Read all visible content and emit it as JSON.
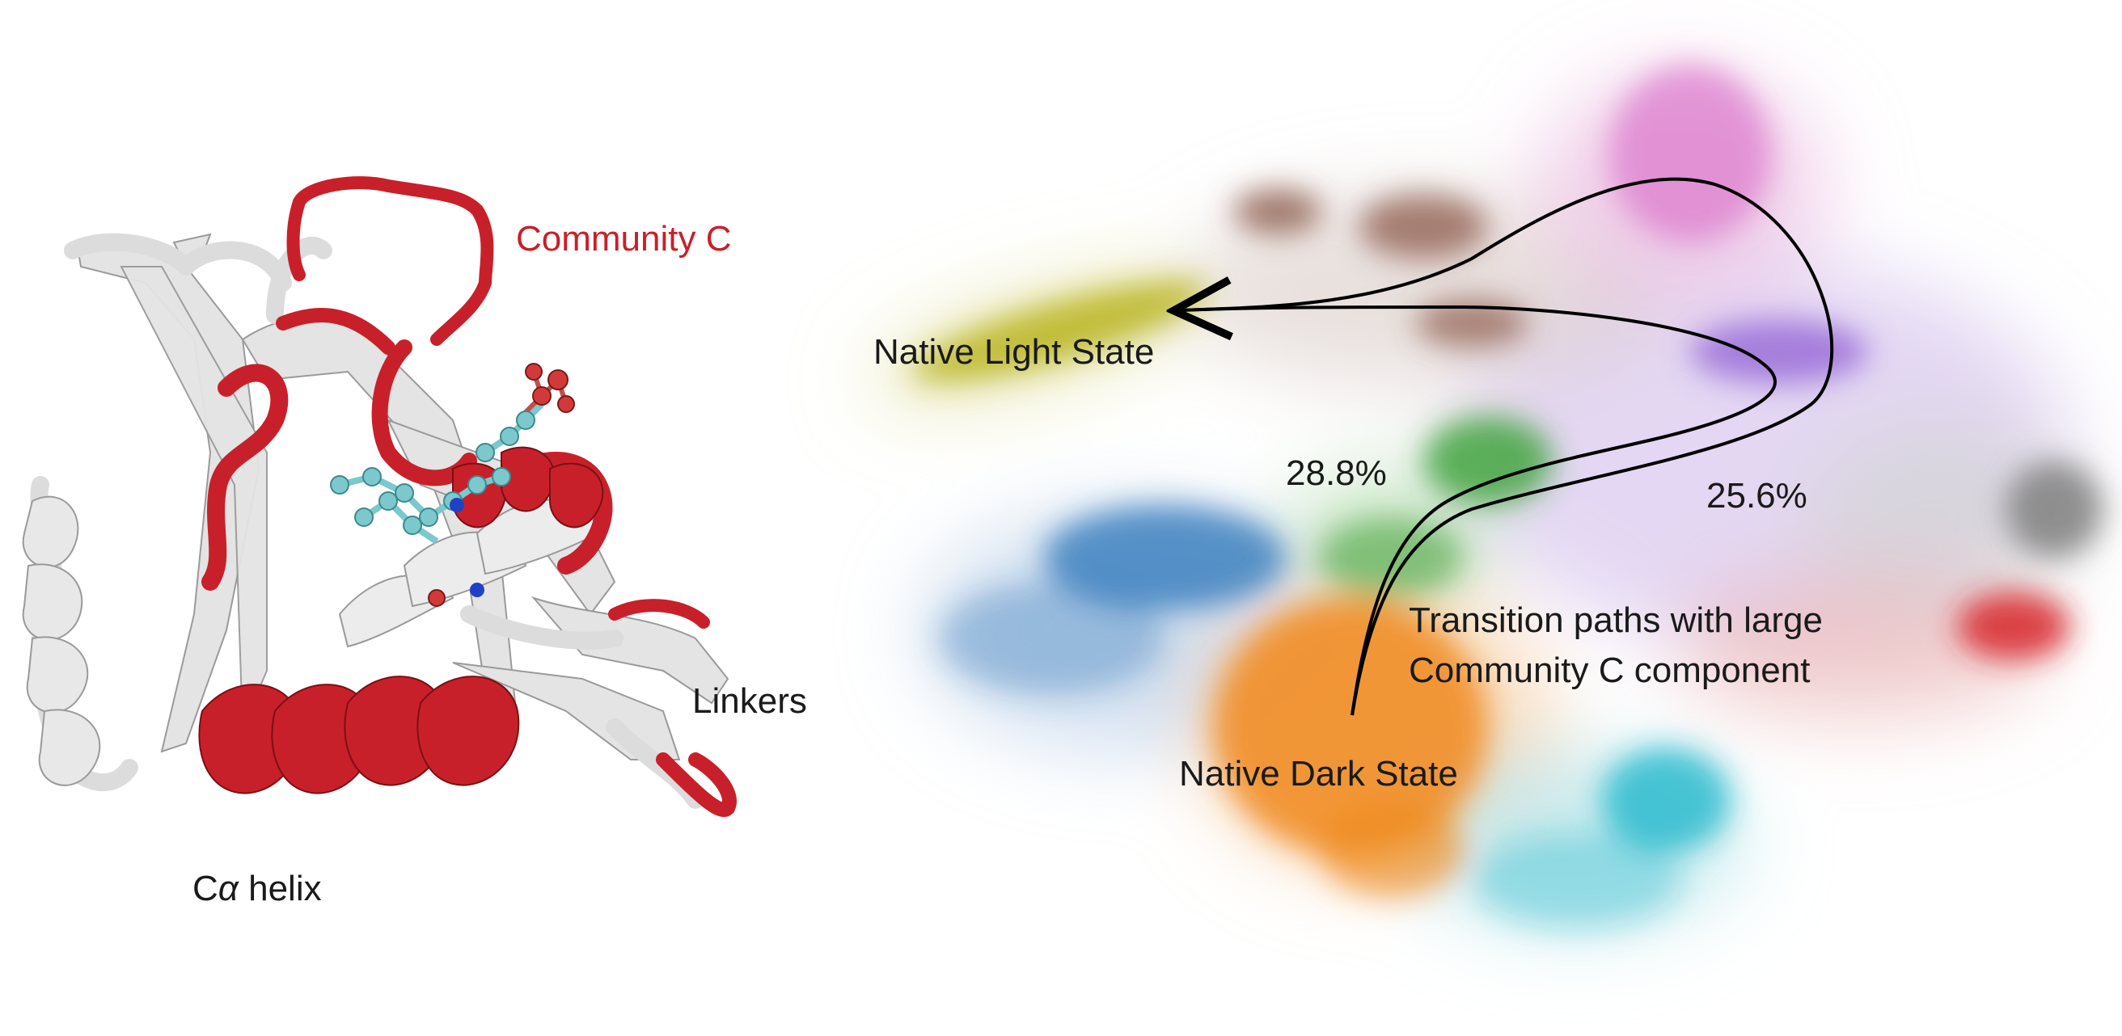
{
  "protein_panel": {
    "community_label": "Community C",
    "linkers_label": "Linkers",
    "helix_label_prefix": "C",
    "helix_label_greek": "α",
    "helix_label_suffix": " helix",
    "colors": {
      "community": "#c8202a",
      "backbone": "#e6e6e6",
      "atom_carbon": "#7cc8cc",
      "atom_oxygen": "#d23a3a",
      "atom_nitrogen": "#2040c8"
    }
  },
  "projection_panel": {
    "light_state_label": "Native Light State",
    "dark_state_label": "Native Dark State",
    "transition_label_line1": "Transition paths with large",
    "transition_label_line2": "Community C component",
    "path_left_pct": "28.8%",
    "path_right_pct": "25.6%",
    "clusters": [
      {
        "id": "olive",
        "color": "#b8b520"
      },
      {
        "id": "brown",
        "color": "#8c5a4a"
      },
      {
        "id": "pink",
        "color": "#d96fc8"
      },
      {
        "id": "purple",
        "color": "#9a6fd8"
      },
      {
        "id": "gray",
        "color": "#7f7f7f"
      },
      {
        "id": "red",
        "color": "#d62728"
      },
      {
        "id": "green",
        "color": "#3aa135"
      },
      {
        "id": "blue",
        "color": "#2a74b8"
      },
      {
        "id": "orange",
        "color": "#f08a20"
      },
      {
        "id": "cyan",
        "color": "#20b8cc"
      }
    ]
  }
}
